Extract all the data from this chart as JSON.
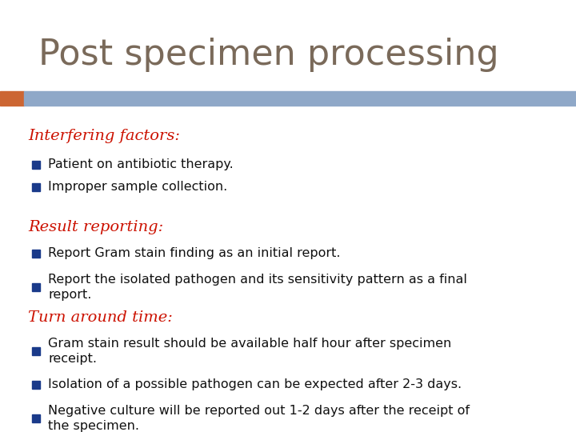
{
  "title": "Post specimen processing",
  "title_color": "#7a6a5a",
  "title_fontsize": 32,
  "background_color": "#ffffff",
  "header_bar_color": "#8fa8c8",
  "header_bar_accent_color": "#cc6633",
  "bullet_color": "#1a3a8a",
  "section_heading_color": "#cc1100",
  "section_heading_fontsize": 14,
  "body_fontsize": 11.5,
  "body_color": "#111111",
  "sections": [
    {
      "heading": "Interfering factors:",
      "bullets": [
        "Patient on antibiotic therapy.",
        "Improper sample collection."
      ]
    },
    {
      "heading": "Result reporting:",
      "bullets": [
        "Report Gram stain finding as an initial report.",
        "Report the isolated pathogen and its sensitivity pattern as a final\nreport."
      ]
    },
    {
      "heading": "Turn around time:",
      "bullets": [
        "Gram stain result should be available half hour after specimen\nreceipt.",
        "Isolation of a possible pathogen can be expected after 2-3 days.",
        "Negative culture will be reported out 1-2 days after the receipt of\nthe specimen."
      ]
    }
  ]
}
